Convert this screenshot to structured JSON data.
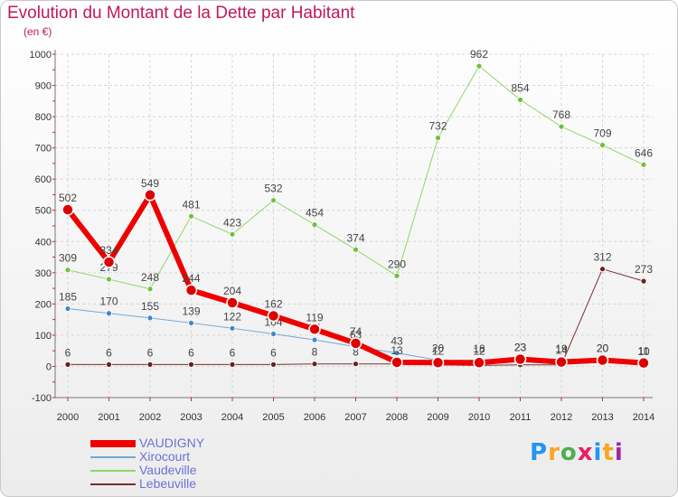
{
  "title": "Evolution du Montant de la Dette par Habitant",
  "subtitle": "(en €)",
  "logo": {
    "text": "Proxiti",
    "colors": [
      "#2196f3",
      "#f5a623",
      "#4caf50",
      "#e91e63",
      "#2196f3",
      "#f5a623",
      "#9c27b0"
    ]
  },
  "chart_data": {
    "type": "line",
    "x": [
      "2000",
      "2001",
      "2002",
      "2003",
      "2004",
      "2005",
      "2006",
      "2007",
      "2008",
      "2009",
      "2010",
      "2011",
      "2012",
      "2013",
      "2014"
    ],
    "ylim": [
      -100,
      1000
    ],
    "yticks": [
      -100,
      0,
      100,
      200,
      300,
      400,
      500,
      600,
      700,
      800,
      900,
      1000
    ],
    "grid": true,
    "legend_position": "bottom-left",
    "series": [
      {
        "name": "Vaudeville",
        "color": "#8fd66b",
        "marker": "#6fc03a",
        "width": 1,
        "values": [
          309,
          279,
          248,
          481,
          423,
          532,
          454,
          374,
          290,
          732,
          962,
          854,
          768,
          709,
          646
        ],
        "labels": [
          "309",
          "279",
          "248",
          "481",
          "423",
          "532",
          "454",
          "374",
          "290",
          "732",
          "962",
          "854",
          "768",
          "709",
          "646"
        ]
      },
      {
        "name": "Xirocourt",
        "color": "#6fa8d8",
        "marker": "#3f87c9",
        "width": 1,
        "values": [
          185,
          170,
          155,
          139,
          122,
          104,
          85,
          63,
          43,
          20,
          18,
          23,
          19,
          20,
          10
        ],
        "labels": [
          "185",
          "170",
          "155",
          "139",
          "122",
          "104",
          "85",
          "63",
          "43",
          "20",
          "18",
          "23",
          "19",
          "20",
          "10"
        ]
      },
      {
        "name": "Lebeuville",
        "color": "#7a2c2c",
        "marker": "#6b1f1f",
        "width": 1,
        "values": [
          6,
          6,
          6,
          6,
          6,
          6,
          8,
          8,
          8,
          5,
          3,
          5,
          5,
          312,
          273
        ],
        "labels": [
          "6",
          "6",
          "6",
          "6",
          "6",
          "6",
          "8",
          "8",
          "",
          "",
          "",
          "",
          "",
          "312",
          "273"
        ]
      },
      {
        "name": "VAUDIGNY",
        "color": "#ee0000",
        "marker": "#dd0000",
        "width": 6,
        "values": [
          502,
          334,
          549,
          244,
          204,
          162,
          119,
          74,
          13,
          12,
          12,
          23,
          14,
          20,
          11
        ],
        "labels": [
          "502",
          "334",
          "549",
          "244",
          "204",
          "162",
          "119",
          "74",
          "13",
          "12",
          "12",
          "23",
          "14",
          "20",
          "11"
        ]
      }
    ],
    "legend": [
      {
        "name": "VAUDIGNY",
        "color": "#ee0000",
        "width": 8,
        "text_color": "#6b73d6"
      },
      {
        "name": "Xirocourt",
        "color": "#6fa8d8",
        "width": 2,
        "text_color": "#6b73d6"
      },
      {
        "name": "Vaudeville",
        "color": "#8fd66b",
        "width": 2,
        "text_color": "#6b73d6"
      },
      {
        "name": "Lebeuville",
        "color": "#7a2c2c",
        "width": 2,
        "text_color": "#6b73d6"
      }
    ]
  }
}
